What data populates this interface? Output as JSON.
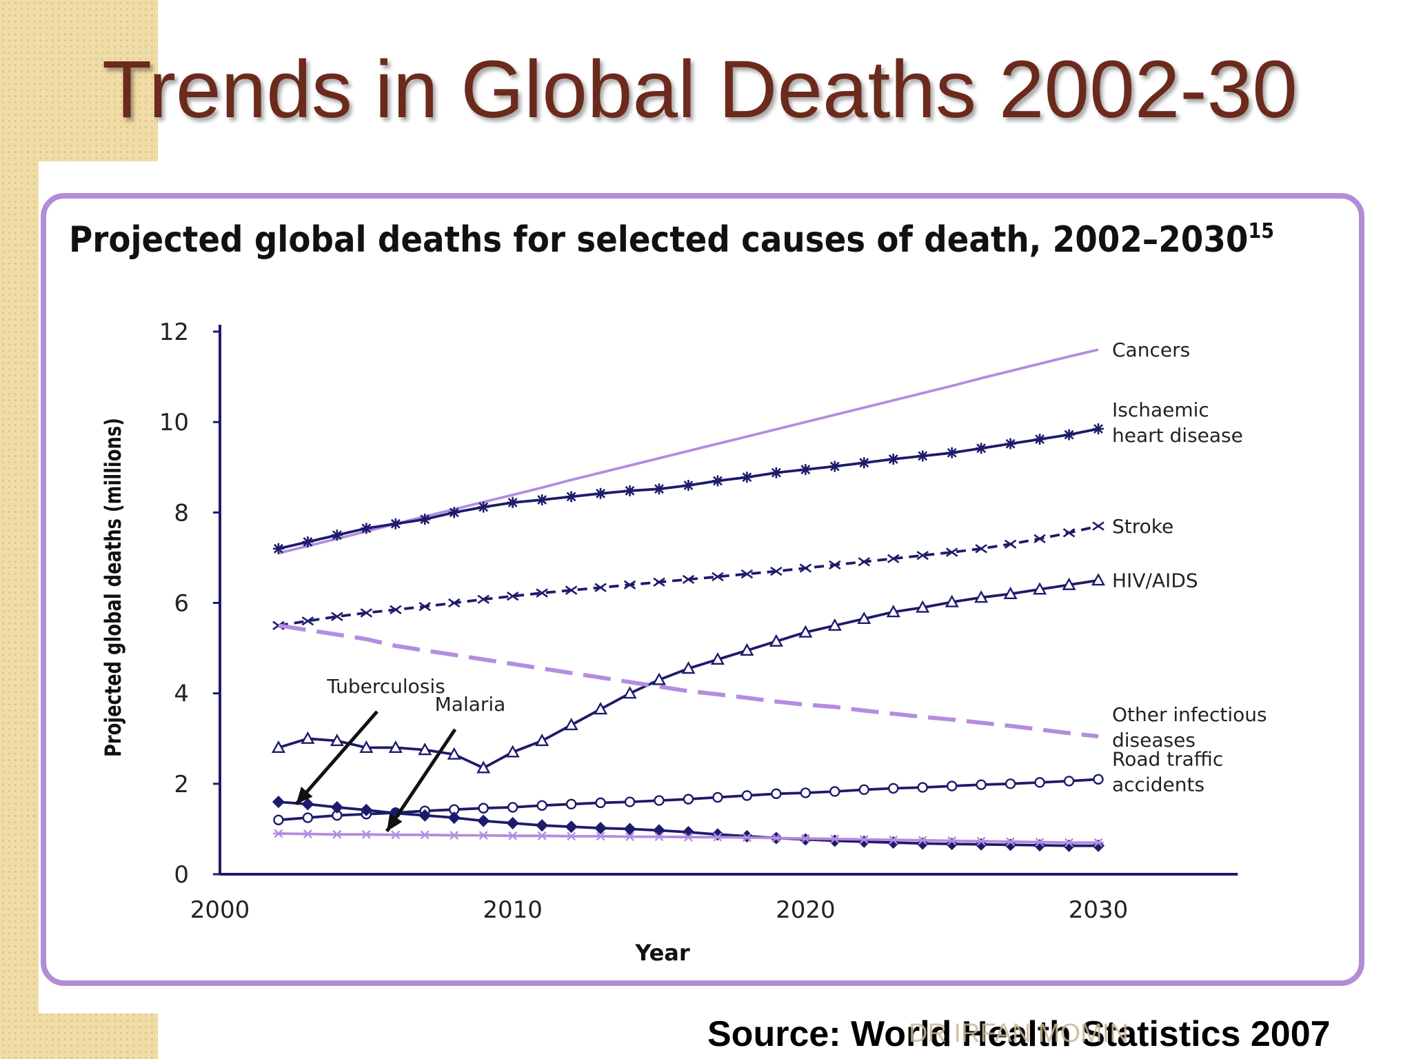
{
  "slide": {
    "title": "Trends in Global Deaths 2002-30",
    "source": "Source: World Health Statistics 2007",
    "watermark": "DR IRFAN MOMIN"
  },
  "colors": {
    "accent": "#b28cd7",
    "title": "#6b2a1c",
    "navy": "#1d1b6b",
    "lavender": "#b48ce0"
  },
  "chart_data": {
    "type": "line",
    "title": "Projected global deaths for selected causes of death, 2002–2030",
    "title_superscript": "15",
    "xlabel": "Year",
    "ylabel": "Projected global deaths (millions)",
    "xlim": [
      2000,
      2035
    ],
    "ylim": [
      0,
      12
    ],
    "x_ticks": [
      2000,
      2010,
      2020,
      2030
    ],
    "y_ticks": [
      0,
      2,
      4,
      6,
      8,
      10,
      12
    ],
    "grid": false,
    "x": [
      2002,
      2003,
      2004,
      2005,
      2006,
      2007,
      2008,
      2009,
      2010,
      2011,
      2012,
      2013,
      2014,
      2015,
      2016,
      2017,
      2018,
      2019,
      2020,
      2021,
      2022,
      2023,
      2024,
      2025,
      2026,
      2027,
      2028,
      2029,
      2030
    ],
    "series": [
      {
        "name": "Cancers",
        "label_lines": [
          "Cancers"
        ],
        "color": "#b48ce0",
        "style": "solid",
        "marker": "none",
        "values": [
          7.1,
          7.26,
          7.42,
          7.58,
          7.75,
          7.91,
          8.07,
          8.23,
          8.39,
          8.55,
          8.72,
          8.88,
          9.04,
          9.2,
          9.36,
          9.52,
          9.68,
          9.84,
          10.0,
          10.16,
          10.32,
          10.48,
          10.64,
          10.8,
          10.97,
          11.13,
          11.29,
          11.45,
          11.6
        ]
      },
      {
        "name": "Ischaemic heart disease",
        "label_lines": [
          "Ischaemic",
          "heart disease"
        ],
        "color": "#1d1b6b",
        "style": "solid",
        "marker": "star",
        "values": [
          7.2,
          7.35,
          7.5,
          7.65,
          7.75,
          7.85,
          8.0,
          8.12,
          8.22,
          8.28,
          8.35,
          8.42,
          8.48,
          8.52,
          8.6,
          8.7,
          8.78,
          8.88,
          8.95,
          9.02,
          9.1,
          9.18,
          9.25,
          9.32,
          9.42,
          9.52,
          9.62,
          9.72,
          9.85
        ]
      },
      {
        "name": "Stroke",
        "label_lines": [
          "Stroke"
        ],
        "color": "#1d1b6b",
        "style": "dashed",
        "marker": "x",
        "values": [
          5.5,
          5.6,
          5.7,
          5.78,
          5.85,
          5.92,
          6.0,
          6.08,
          6.15,
          6.22,
          6.28,
          6.34,
          6.4,
          6.46,
          6.52,
          6.58,
          6.64,
          6.7,
          6.77,
          6.84,
          6.91,
          6.98,
          7.05,
          7.12,
          7.2,
          7.3,
          7.42,
          7.55,
          7.7
        ]
      },
      {
        "name": "HIV/AIDS",
        "label_lines": [
          "HIV/AIDS"
        ],
        "color": "#1d1b6b",
        "style": "solid",
        "marker": "triangle",
        "values": [
          2.8,
          3.0,
          2.95,
          2.8,
          2.8,
          2.75,
          2.65,
          2.35,
          2.7,
          2.95,
          3.3,
          3.65,
          4.0,
          4.3,
          4.55,
          4.75,
          4.95,
          5.15,
          5.35,
          5.5,
          5.65,
          5.8,
          5.9,
          6.02,
          6.12,
          6.2,
          6.3,
          6.4,
          6.5
        ]
      },
      {
        "name": "Other infectious diseases",
        "label_lines": [
          "Other infectious",
          "diseases"
        ],
        "color": "#b48ce0",
        "style": "longdash",
        "marker": "none",
        "values": [
          5.5,
          5.4,
          5.3,
          5.2,
          5.05,
          4.95,
          4.85,
          4.75,
          4.65,
          4.55,
          4.45,
          4.35,
          4.25,
          4.15,
          4.05,
          3.98,
          3.9,
          3.82,
          3.75,
          3.7,
          3.62,
          3.55,
          3.48,
          3.42,
          3.35,
          3.28,
          3.2,
          3.12,
          3.05
        ]
      },
      {
        "name": "Road traffic accidents",
        "label_lines": [
          "Road traffic",
          "accidents"
        ],
        "color": "#1d1b6b",
        "style": "solid",
        "marker": "circle",
        "values": [
          1.2,
          1.25,
          1.3,
          1.33,
          1.36,
          1.4,
          1.43,
          1.46,
          1.48,
          1.52,
          1.55,
          1.58,
          1.6,
          1.63,
          1.66,
          1.7,
          1.74,
          1.78,
          1.8,
          1.83,
          1.87,
          1.9,
          1.92,
          1.95,
          1.98,
          2.0,
          2.03,
          2.06,
          2.1
        ]
      },
      {
        "name": "Tuberculosis",
        "label_lines": [
          "Tuberculosis"
        ],
        "color": "#1d1b6b",
        "style": "solid",
        "marker": "diamond",
        "values": [
          1.6,
          1.55,
          1.48,
          1.42,
          1.35,
          1.3,
          1.25,
          1.18,
          1.13,
          1.08,
          1.05,
          1.02,
          1.0,
          0.97,
          0.93,
          0.88,
          0.84,
          0.8,
          0.77,
          0.74,
          0.72,
          0.7,
          0.68,
          0.67,
          0.66,
          0.65,
          0.64,
          0.63,
          0.63
        ]
      },
      {
        "name": "Malaria",
        "label_lines": [
          "Malaria"
        ],
        "color": "#b48ce0",
        "style": "solid",
        "marker": "asterisk",
        "values": [
          0.9,
          0.89,
          0.88,
          0.88,
          0.87,
          0.87,
          0.86,
          0.86,
          0.85,
          0.85,
          0.84,
          0.84,
          0.83,
          0.83,
          0.82,
          0.82,
          0.81,
          0.8,
          0.79,
          0.78,
          0.77,
          0.76,
          0.75,
          0.74,
          0.73,
          0.72,
          0.71,
          0.7,
          0.7
        ]
      }
    ],
    "annotations": [
      {
        "text": "Tuberculosis",
        "points_to": {
          "x": 2002.6,
          "y": 1.55
        }
      },
      {
        "text": "Malaria",
        "points_to": {
          "x": 2005.7,
          "y": 0.95
        }
      }
    ]
  }
}
